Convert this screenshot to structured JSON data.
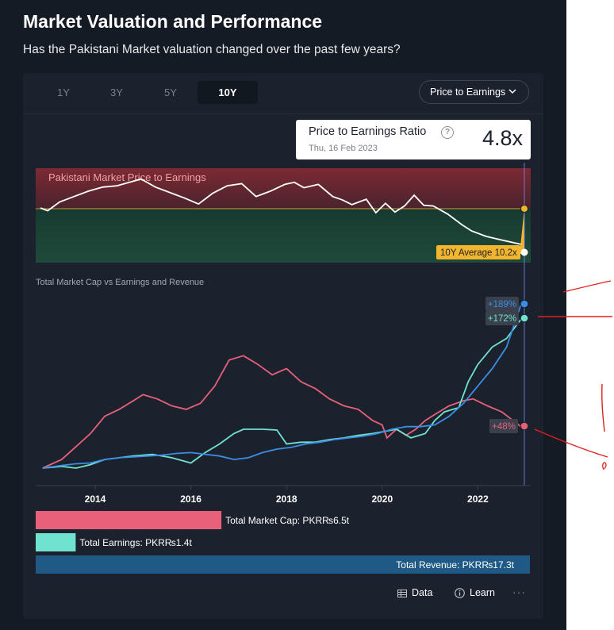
{
  "header": {
    "title": "Market Valuation and Performance",
    "subtitle": "Has the Pakistani Market valuation changed over the past few years?"
  },
  "tabs": [
    {
      "label": "1Y",
      "active": false
    },
    {
      "label": "3Y",
      "active": false
    },
    {
      "label": "5Y",
      "active": false
    },
    {
      "label": "10Y",
      "active": true
    }
  ],
  "metric_select": {
    "value": "Price to Earnings"
  },
  "tooltip": {
    "title": "Price to Earnings Ratio",
    "help": "?",
    "date": "Thu, 16 Feb 2023",
    "value": "4.8x"
  },
  "footer": {
    "data_label": "Data",
    "learn_label": "Learn",
    "more_label": "···"
  },
  "colors": {
    "market_cap": "#e8607a",
    "earnings": "#6fe3cf",
    "revenue": "#3a8ee6",
    "average_badge": "#f2b52d",
    "band_top": "#7d2a33",
    "band_bottom": "#1f4a3a"
  },
  "chart_data": [
    {
      "type": "line",
      "title": "Pakistani Market Price to Earnings",
      "x": [
        2012.9,
        2013.05,
        2013.3,
        2013.6,
        2013.9,
        2014.2,
        2014.5,
        2014.8,
        2015.0,
        2015.3,
        2015.6,
        2015.9,
        2016.2,
        2016.5,
        2016.8,
        2017.1,
        2017.4,
        2017.7,
        2018.0,
        2018.2,
        2018.4,
        2018.7,
        2019.0,
        2019.2,
        2019.4,
        2019.7,
        2019.9,
        2020.1,
        2020.3,
        2020.5,
        2020.7,
        2020.9,
        2021.1,
        2021.4,
        2021.7,
        2021.9,
        2022.2,
        2022.5,
        2023.0
      ],
      "values": [
        10.3,
        9.9,
        11.2,
        12.0,
        12.8,
        13.4,
        13.6,
        14.2,
        14.6,
        13.4,
        12.6,
        11.8,
        10.9,
        12.5,
        13.6,
        13.9,
        12.0,
        12.8,
        13.8,
        14.1,
        13.3,
        13.8,
        12.0,
        11.5,
        10.8,
        11.6,
        9.6,
        11.0,
        9.7,
        10.6,
        12.2,
        10.7,
        10.6,
        9.4,
        7.8,
        6.9,
        6.1,
        5.6,
        4.8
      ],
      "average": 10.2,
      "average_label": "10Y Average 10.2x",
      "ylim": [
        3.5,
        17
      ]
    },
    {
      "type": "line",
      "title": "Total Market Cap vs Earnings and Revenue",
      "xticks": [
        "2014",
        "2016",
        "2018",
        "2020",
        "2022"
      ],
      "xlim": [
        2012.9,
        2023.0
      ],
      "ylim": [
        -10,
        230
      ],
      "series": [
        {
          "name": "Total Market Cap",
          "end_label": "+48%",
          "x": [
            2012.9,
            2013.1,
            2013.3,
            2013.6,
            2013.9,
            2014.2,
            2014.5,
            2014.8,
            2015.0,
            2015.3,
            2015.6,
            2015.9,
            2016.2,
            2016.5,
            2016.8,
            2017.1,
            2017.4,
            2017.7,
            2018.0,
            2018.3,
            2018.6,
            2018.9,
            2019.2,
            2019.5,
            2019.8,
            2020.0,
            2020.1,
            2020.3,
            2020.5,
            2020.7,
            2020.9,
            2021.1,
            2021.4,
            2021.7,
            2021.9,
            2022.2,
            2022.5,
            2022.9
          ],
          "values": [
            0,
            5,
            10,
            25,
            40,
            60,
            68,
            78,
            85,
            80,
            72,
            68,
            75,
            95,
            125,
            130,
            120,
            108,
            115,
            100,
            92,
            80,
            72,
            68,
            55,
            50,
            35,
            45,
            38,
            45,
            55,
            62,
            72,
            78,
            80,
            72,
            65,
            48
          ]
        },
        {
          "name": "Total Earnings",
          "end_label": "+172%",
          "x": [
            2012.9,
            2013.3,
            2013.6,
            2013.9,
            2014.2,
            2014.5,
            2014.8,
            2015.2,
            2015.6,
            2016.0,
            2016.3,
            2016.6,
            2016.9,
            2017.1,
            2017.5,
            2017.8,
            2018.0,
            2018.3,
            2018.6,
            2018.9,
            2019.2,
            2019.5,
            2019.8,
            2020.0,
            2020.3,
            2020.6,
            2020.9,
            2021.1,
            2021.3,
            2021.6,
            2021.8,
            2022.0,
            2022.3,
            2022.6,
            2022.9
          ],
          "values": [
            0,
            2,
            0,
            4,
            10,
            12,
            14,
            16,
            12,
            6,
            18,
            28,
            40,
            45,
            45,
            44,
            28,
            30,
            30,
            33,
            35,
            38,
            40,
            42,
            45,
            35,
            40,
            55,
            65,
            70,
            100,
            120,
            140,
            150,
            172
          ]
        },
        {
          "name": "Total Revenue",
          "end_label": "+189%",
          "x": [
            2012.9,
            2013.3,
            2013.6,
            2013.9,
            2014.2,
            2014.5,
            2014.8,
            2015.1,
            2015.4,
            2015.7,
            2016.0,
            2016.3,
            2016.6,
            2016.9,
            2017.2,
            2017.5,
            2017.8,
            2018.1,
            2018.4,
            2018.7,
            2019.0,
            2019.3,
            2019.6,
            2019.9,
            2020.2,
            2020.5,
            2020.8,
            2021.1,
            2021.4,
            2021.7,
            2022.0,
            2022.3,
            2022.6,
            2022.9
          ],
          "values": [
            0,
            3,
            5,
            6,
            10,
            12,
            13,
            14,
            15,
            17,
            18,
            16,
            14,
            10,
            12,
            18,
            22,
            24,
            28,
            30,
            33,
            35,
            37,
            40,
            45,
            48,
            48,
            50,
            60,
            75,
            95,
            115,
            140,
            189
          ]
        }
      ]
    },
    {
      "type": "bar",
      "categories": [
        "Total Market Cap",
        "Total Earnings",
        "Total Revenue"
      ],
      "values": [
        6.5,
        1.4,
        17.3
      ],
      "labels": [
        "Total Market Cap: PKR₨6.5t",
        "Total Earnings: PKR₨1.4t",
        "Total Revenue: PKR₨17.3t"
      ],
      "xlim": [
        0,
        17.3
      ]
    }
  ]
}
